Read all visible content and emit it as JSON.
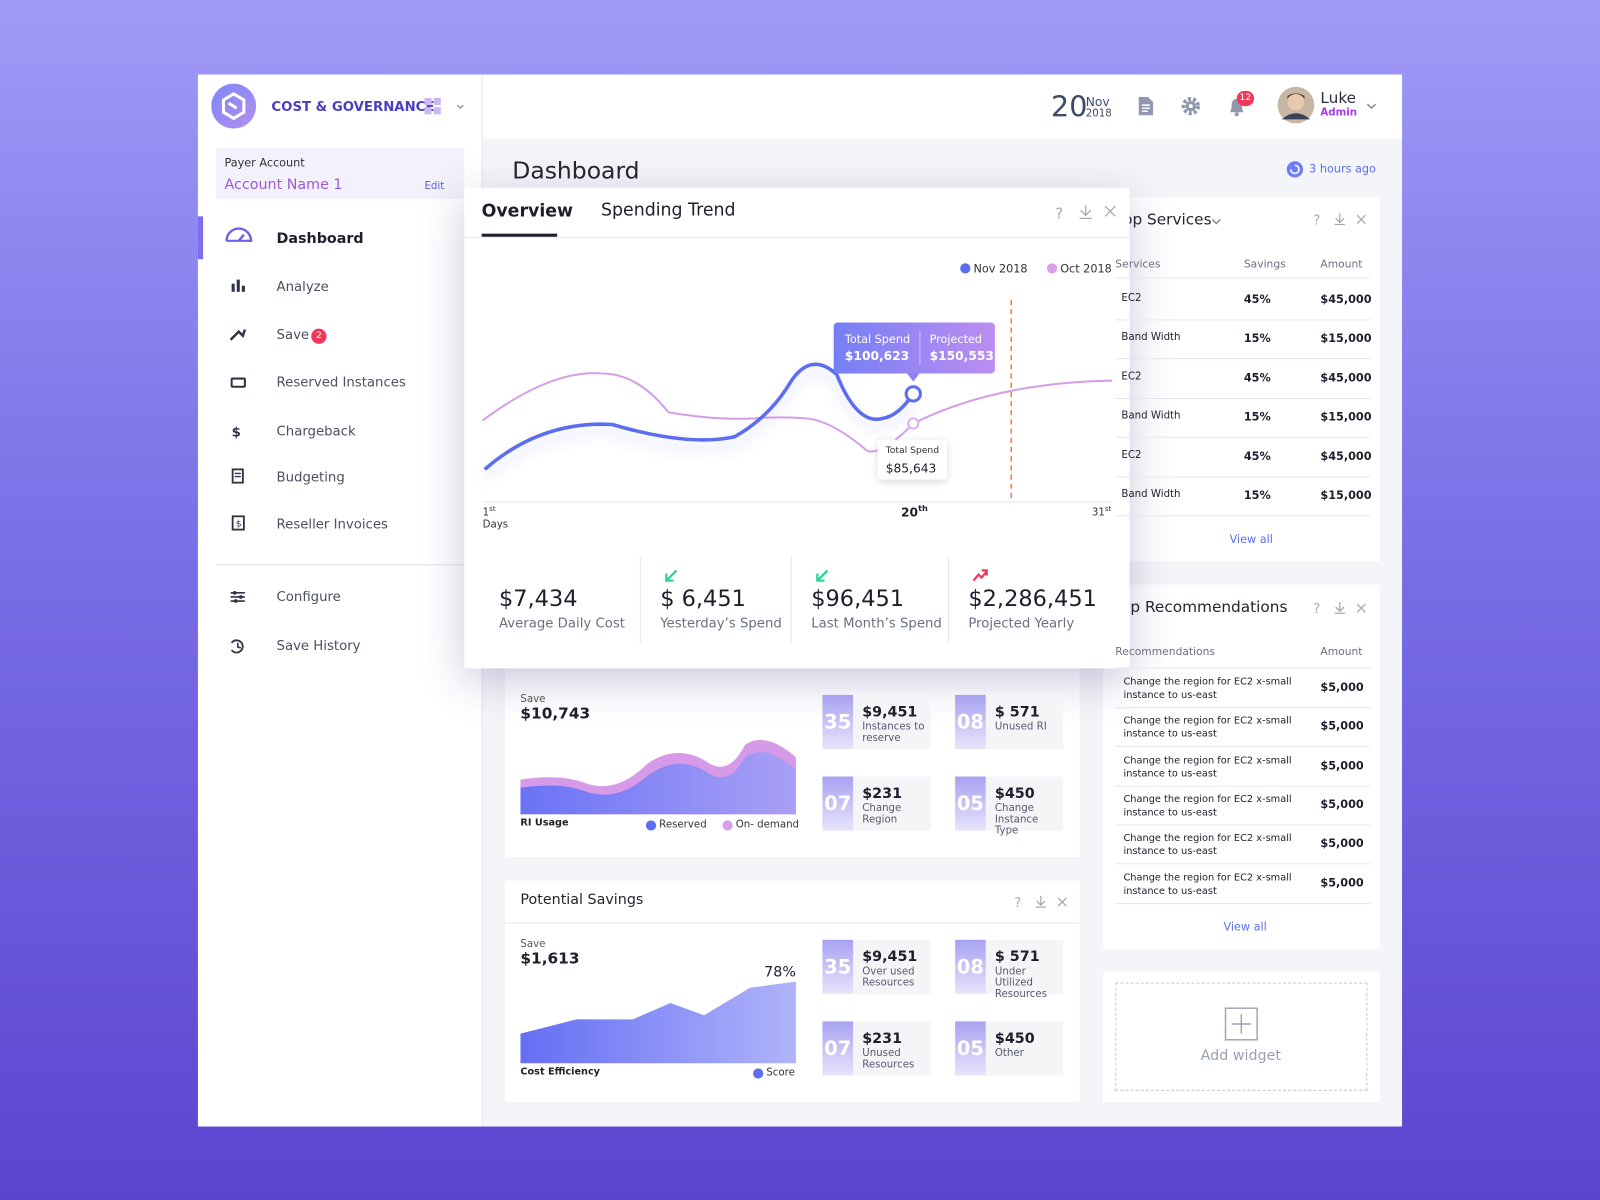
{
  "brand": {
    "name": "COST & GOVERNANCE"
  },
  "account": {
    "label": "Payer Account",
    "name": "Account Name 1",
    "action": "Edit"
  },
  "nav": {
    "items": [
      {
        "label": "Dashboard"
      },
      {
        "label": "Analyze"
      },
      {
        "label": "Save",
        "badge": "2"
      },
      {
        "label": "Reserved Instances"
      },
      {
        "label": "Chargeback"
      },
      {
        "label": "Budgeting"
      },
      {
        "label": "Reseller Invoices"
      }
    ],
    "footer": [
      {
        "label": "Configure"
      },
      {
        "label": "Save History"
      }
    ]
  },
  "header": {
    "day": "20",
    "month": "Nov",
    "year": "2018",
    "notifications": "12",
    "user": "Luke",
    "role": "Admin"
  },
  "page": {
    "title": "Dashboard",
    "updated": "3 hours ago"
  },
  "overview": {
    "tabs": [
      "Overview",
      "Spending Trend"
    ],
    "legend": [
      "Nov 2018",
      "Oct 2018"
    ],
    "tooltip": {
      "spend_label": "Total Spend",
      "spend": "$100,623",
      "projected_label": "Projected",
      "projected": "$150,553"
    },
    "tooltip2": {
      "label": "Total Spend",
      "value": "$85,643"
    },
    "axis": {
      "start": {
        "day": "1",
        "suffix": "st"
      },
      "mid": {
        "day": "20",
        "suffix": "th"
      },
      "end": {
        "day": "31",
        "suffix": "st"
      },
      "label": "Days"
    },
    "kpis": [
      {
        "value": "$7,434",
        "label": "Average Daily Cost"
      },
      {
        "value": "$ 6,451",
        "label": "Yesterday’s Spend"
      },
      {
        "value": "$96,451",
        "label": "Last Month’s Spend"
      },
      {
        "value": "$2,286,451",
        "label": "Projected Yearly"
      }
    ]
  },
  "ri_widget": {
    "save_label": "Save",
    "save": "$10,743",
    "chart_label": "RI Usage",
    "legend": [
      "Reserved",
      "On- demand"
    ],
    "tiles": [
      {
        "count": "35",
        "amount": "$9,451",
        "label": "Instances to reserve"
      },
      {
        "count": "08",
        "amount": "$ 571",
        "label": "Unused RI"
      },
      {
        "count": "07",
        "amount": "$231",
        "label": "Change Region"
      },
      {
        "count": "05",
        "amount": "$450",
        "label": "Change Instance Type"
      }
    ]
  },
  "potential_savings": {
    "title": "Potential Savings",
    "save_label": "Save",
    "save": "$1,613",
    "peak": "78%",
    "chart_label": "Cost Efficiency",
    "legend": [
      "Score"
    ],
    "tiles": [
      {
        "count": "35",
        "amount": "$9,451",
        "label": "Over used Resources"
      },
      {
        "count": "08",
        "amount": "$ 571",
        "label": "Under Utilized Resources"
      },
      {
        "count": "07",
        "amount": "$231",
        "label": "Unused Resources"
      },
      {
        "count": "05",
        "amount": "$450",
        "label": "Other"
      }
    ]
  },
  "top_services": {
    "title": "Top Services",
    "columns": [
      "Services",
      "Savings",
      "Amount"
    ],
    "rows": [
      [
        "EC2",
        "45%",
        "$45,000"
      ],
      [
        "Band Width",
        "15%",
        "$15,000"
      ],
      [
        "EC2",
        "45%",
        "$45,000"
      ],
      [
        "Band Width",
        "15%",
        "$15,000"
      ],
      [
        "EC2",
        "45%",
        "$45,000"
      ],
      [
        "Band Width",
        "15%",
        "$15,000"
      ]
    ],
    "more": "View all"
  },
  "top_recommendations": {
    "title": "Top Recommendations",
    "columns": [
      "Recommendations",
      "Amount"
    ],
    "rows": [
      [
        "Change the region for EC2 x-small instance to us-east",
        "$5,000"
      ],
      [
        "Change the region for EC2 x-small instance to us-east",
        "$5,000"
      ],
      [
        "Change the region for EC2 x-small instance to us-east",
        "$5,000"
      ],
      [
        "Change the region for EC2 x-small instance to us-east",
        "$5,000"
      ],
      [
        "Change the region for EC2 x-small instance to us-east",
        "$5,000"
      ],
      [
        "Change the region for EC2 x-small instance to us-east",
        "$5,000"
      ]
    ],
    "more": "View all"
  },
  "add_widget": {
    "label": "Add widget"
  }
}
